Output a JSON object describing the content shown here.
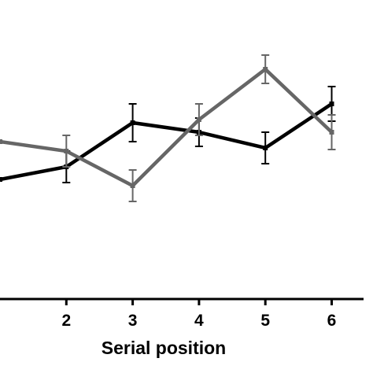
{
  "chart_data": {
    "type": "line",
    "title": "",
    "xlabel": "Serial position",
    "ylabel": "",
    "x_ticks": [
      2,
      3,
      4,
      5,
      6
    ],
    "xlim": [
      1,
      6.5
    ],
    "ylim": [
      0,
      1
    ],
    "grid": false,
    "legend": "none",
    "series": [
      {
        "color": "#000000",
        "points": [
          {
            "x": 1,
            "y": 0.38
          },
          {
            "x": 2,
            "y": 0.42
          },
          {
            "x": 3,
            "y": 0.56
          },
          {
            "x": 4,
            "y": 0.53
          },
          {
            "x": 5,
            "y": 0.48
          },
          {
            "x": 6,
            "y": 0.62
          }
        ],
        "error": [
          null,
          0.05,
          0.06,
          0.045,
          0.05,
          0.055
        ]
      },
      {
        "color": "#666666",
        "points": [
          {
            "x": 1,
            "y": 0.5
          },
          {
            "x": 2,
            "y": 0.47
          },
          {
            "x": 3,
            "y": 0.36
          },
          {
            "x": 4,
            "y": 0.57
          },
          {
            "x": 5,
            "y": 0.73
          },
          {
            "x": 6,
            "y": 0.53
          }
        ],
        "error": [
          null,
          0.05,
          0.05,
          0.05,
          0.045,
          0.055
        ]
      }
    ]
  }
}
